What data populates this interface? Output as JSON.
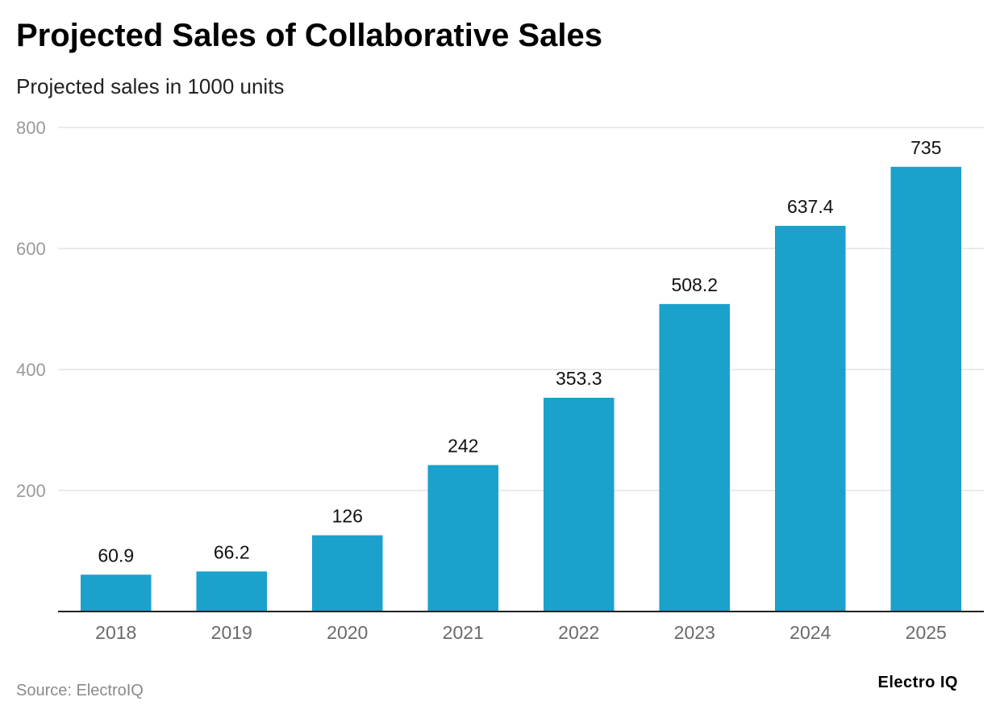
{
  "chart_data": {
    "type": "bar",
    "title": "Projected Sales of Collaborative Sales",
    "subtitle": "Projected sales in 1000 units",
    "categories": [
      "2018",
      "2019",
      "2020",
      "2021",
      "2022",
      "2023",
      "2024",
      "2025"
    ],
    "values": [
      60.9,
      66.2,
      126,
      242,
      353.3,
      508.2,
      637.4,
      735
    ],
    "value_labels": [
      "60.9",
      "66.2",
      "126",
      "242",
      "353.3",
      "508.2",
      "637.4",
      "735"
    ],
    "ylim": [
      0,
      800
    ],
    "yticks": [
      200,
      400,
      600,
      800
    ],
    "grid": true,
    "xlabel": "",
    "ylabel": "",
    "bar_color": "#1aa1cc"
  },
  "footer": {
    "source": "Source: ElectroIQ",
    "brand": "Electro IQ"
  }
}
